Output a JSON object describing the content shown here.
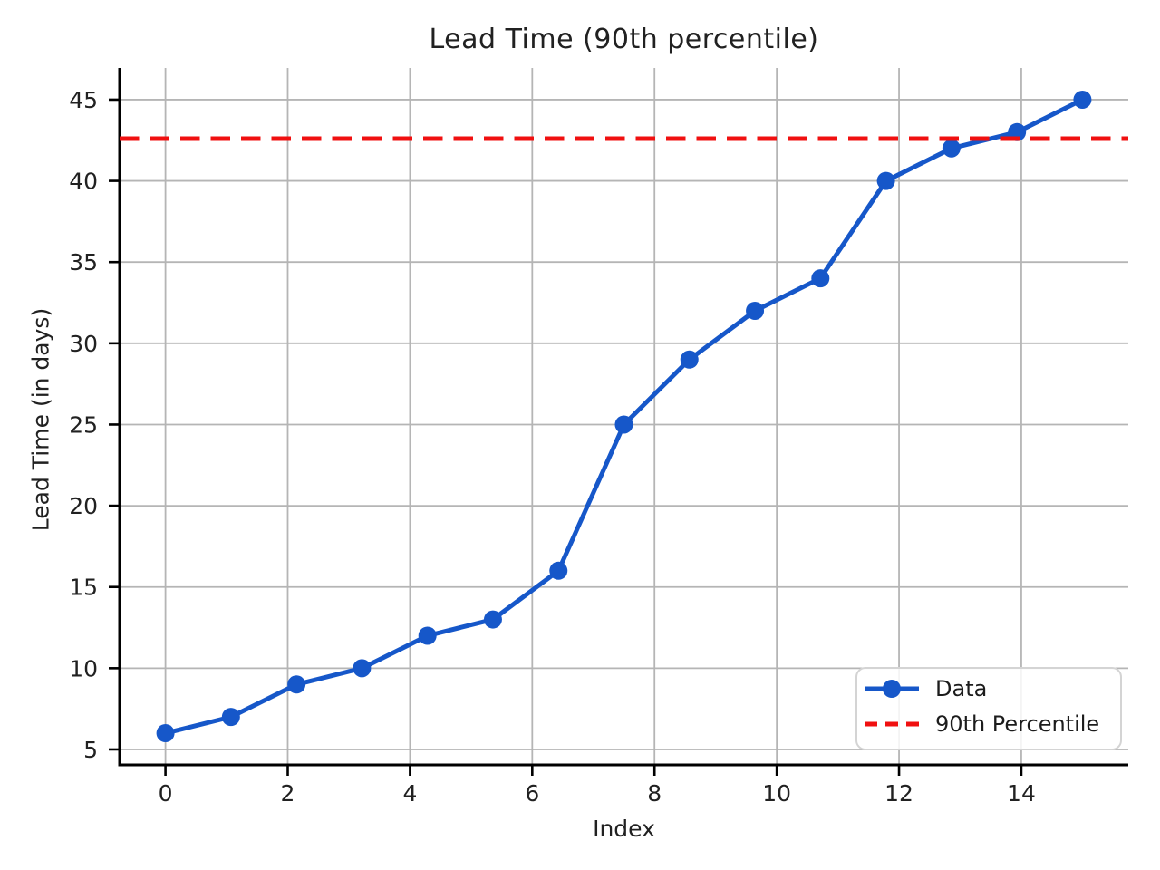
{
  "chart_data": {
    "type": "line",
    "title": "Lead Time (90th percentile)",
    "xlabel": "Index",
    "ylabel": "Lead Time (in days)",
    "x": [
      0,
      1.071,
      2.143,
      3.214,
      4.286,
      5.357,
      6.429,
      7.5,
      8.571,
      9.643,
      10.714,
      11.786,
      12.857,
      13.929,
      15
    ],
    "series": [
      {
        "name": "Data",
        "style": "solid-line-with-circle-markers",
        "color": "#1657c9",
        "values": [
          6,
          7,
          9,
          10,
          12,
          13,
          16,
          25,
          29,
          32,
          34,
          40,
          42,
          43,
          45
        ]
      }
    ],
    "reference_lines": [
      {
        "name": "90th Percentile",
        "value": 42.6,
        "color": "#f01010",
        "style": "dashed"
      }
    ],
    "xticks": [
      0,
      2,
      4,
      6,
      8,
      10,
      12,
      14
    ],
    "yticks": [
      5,
      10,
      15,
      20,
      25,
      30,
      35,
      40,
      45
    ],
    "xlim": [
      -0.75,
      15.75
    ],
    "ylim": [
      4.05,
      46.95
    ],
    "grid": true,
    "legend_position": "lower right"
  },
  "colors": {
    "data_line": "#1657c9",
    "percentile_line": "#f01010",
    "grid": "#b5b5b5",
    "axis": "#000000",
    "text": "#212121",
    "legend_border": "#d4d4d4"
  }
}
